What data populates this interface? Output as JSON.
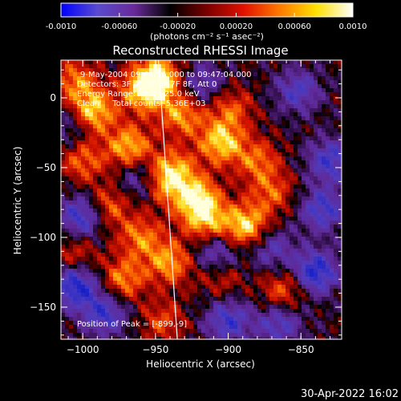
{
  "colorbar": {
    "min": -0.001,
    "max": 0.001,
    "ticks": [
      "-0.0010",
      "-0.00060",
      "-0.00020",
      "0.00020",
      "0.00060",
      "0.0010"
    ],
    "tick_values": [
      -0.001,
      -0.0006,
      -0.0002,
      0.0002,
      0.0006,
      0.001
    ],
    "unit_label": "(photons cm⁻² s⁻¹ asec⁻²)",
    "colors": [
      "#0000ff",
      "#5a4bcf",
      "#6a2a9a",
      "#000000",
      "#7a0000",
      "#e01000",
      "#ff7a00",
      "#ffe000",
      "#ffffff"
    ]
  },
  "chart_data": {
    "type": "heatmap",
    "title": "Reconstructed RHESSI Image",
    "xlabel": "Heliocentric X (arcsec)",
    "ylabel": "Heliocentric Y (arcsec)",
    "xlim": [
      -1015,
      -822
    ],
    "ylim": [
      -173,
      27
    ],
    "x_ticks": [
      -1000,
      -950,
      -900,
      -850
    ],
    "x_tick_labels": [
      "−1000",
      "−950",
      "−900",
      "−850"
    ],
    "y_ticks": [
      0,
      -50,
      -100,
      -150
    ],
    "y_tick_labels": [
      "0",
      "−50",
      "−100",
      "−150"
    ],
    "info_lines": [
      "9-May-2004 09:44:56.000 to 09:47:04.000",
      "Detectors: 3F 4F 5F 6F 7F 8F, Att 0",
      "Energy Range: 12.0 - 25.0 keV",
      "Clean     Total counts: 5.36E+03"
    ],
    "peak_label": "Position of Peak = [-899,-9]",
    "peak": [
      -899,
      -9
    ],
    "limb_line": [
      [
        -948,
        27
      ],
      [
        -935,
        -173
      ]
    ],
    "blobs": [
      {
        "x": -1005,
        "y": 12,
        "v": 0.6
      },
      {
        "x": -993,
        "y": -10,
        "v": 0.9
      },
      {
        "x": -958,
        "y": 5,
        "v": 0.8
      },
      {
        "x": -948,
        "y": 15,
        "v": 0.9
      },
      {
        "x": -898,
        "y": -8,
        "v": 0.5
      },
      {
        "x": -932,
        "y": -12,
        "v": 0.7
      },
      {
        "x": -968,
        "y": -35,
        "v": 0.8
      },
      {
        "x": -1000,
        "y": -45,
        "v": 0.55
      },
      {
        "x": -905,
        "y": -32,
        "v": 0.85
      },
      {
        "x": -880,
        "y": -45,
        "v": 0.55
      },
      {
        "x": -938,
        "y": -52,
        "v": 0.7
      },
      {
        "x": -922,
        "y": -72,
        "v": 0.9
      },
      {
        "x": -915,
        "y": -88,
        "v": 0.7
      },
      {
        "x": -888,
        "y": -92,
        "v": 0.9
      },
      {
        "x": -870,
        "y": -68,
        "v": 0.5
      },
      {
        "x": -983,
        "y": -78,
        "v": 0.6
      },
      {
        "x": -960,
        "y": -100,
        "v": 0.6
      },
      {
        "x": -945,
        "y": -62,
        "v": 0.5
      },
      {
        "x": -940,
        "y": -118,
        "v": 0.7
      },
      {
        "x": -972,
        "y": -130,
        "v": 0.65
      },
      {
        "x": -1005,
        "y": -112,
        "v": 0.4
      },
      {
        "x": -862,
        "y": -138,
        "v": 0.55
      },
      {
        "x": -905,
        "y": -128,
        "v": 0.4
      },
      {
        "x": -945,
        "y": -160,
        "v": 0.45
      },
      {
        "x": -1000,
        "y": -85,
        "v": -0.8
      },
      {
        "x": -1005,
        "y": -135,
        "v": -0.9
      },
      {
        "x": -840,
        "y": -125,
        "v": -0.9
      },
      {
        "x": -835,
        "y": -80,
        "v": -0.7
      },
      {
        "x": -830,
        "y": -45,
        "v": -0.7
      },
      {
        "x": -960,
        "y": -58,
        "v": -0.5
      },
      {
        "x": -985,
        "y": -155,
        "v": -0.7
      },
      {
        "x": -900,
        "y": -160,
        "v": -0.7
      },
      {
        "x": -865,
        "y": -162,
        "v": -0.6
      },
      {
        "x": -908,
        "y": -112,
        "v": -0.6
      },
      {
        "x": -852,
        "y": 5,
        "v": -0.6
      },
      {
        "x": -918,
        "y": 10,
        "v": -0.5
      },
      {
        "x": -1008,
        "y": -20,
        "v": -0.4
      },
      {
        "x": -870,
        "y": -108,
        "v": -0.5
      }
    ]
  },
  "timestamp": "30-Apr-2022 16:02"
}
